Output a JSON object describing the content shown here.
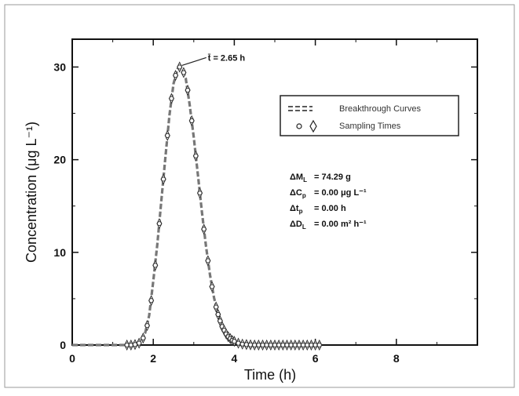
{
  "chart_data": {
    "type": "line",
    "title": "",
    "xlabel": "Time (h)",
    "ylabel": "Concentration (μg L⁻¹)",
    "xlim": [
      0,
      10
    ],
    "ylim": [
      0,
      33
    ],
    "x_ticks": [
      0,
      2,
      4,
      6,
      8
    ],
    "y_ticks": [
      0,
      10,
      20,
      30
    ],
    "grid": false,
    "legend_position": "top-right",
    "legend": [
      {
        "label": "Breakthrough Curves",
        "marker": "dashed-line"
      },
      {
        "label": "Sampling Times",
        "marker": "circle-diamond"
      }
    ],
    "series": [
      {
        "name": "Breakthrough Curves",
        "style": "dashed",
        "color": "#666666",
        "x": [
          0.0,
          0.5,
          1.0,
          1.3,
          1.5,
          1.6,
          1.7,
          1.8,
          1.9,
          2.0,
          2.1,
          2.2,
          2.3,
          2.4,
          2.5,
          2.6,
          2.65,
          2.7,
          2.8,
          2.9,
          3.0,
          3.1,
          3.2,
          3.3,
          3.4,
          3.5,
          3.6,
          3.7,
          3.8,
          3.9,
          4.0,
          4.2,
          4.5,
          5.0,
          5.5,
          6.0,
          6.2
        ],
        "y": [
          0.0,
          0.0,
          0.0,
          0.0,
          0.02,
          0.1,
          0.4,
          1.3,
          3.2,
          6.9,
          10.9,
          15.6,
          20.3,
          24.8,
          28.2,
          29.8,
          30.0,
          29.8,
          28.8,
          25.9,
          22.4,
          18.4,
          14.4,
          10.7,
          7.6,
          5.1,
          3.3,
          2.0,
          1.2,
          0.7,
          0.4,
          0.1,
          0.02,
          0.0,
          0.0,
          0.0,
          0.0
        ]
      },
      {
        "name": "Sampling Times",
        "style": "markers",
        "color": "#555555",
        "x": [
          1.35,
          1.45,
          1.55,
          1.65,
          1.75,
          1.85,
          1.95,
          2.05,
          2.15,
          2.25,
          2.35,
          2.45,
          2.55,
          2.65,
          2.75,
          2.85,
          2.95,
          3.05,
          3.15,
          3.25,
          3.35,
          3.45,
          3.55,
          3.6,
          3.65,
          3.7,
          3.75,
          3.8,
          3.85,
          3.9,
          3.95,
          4.0,
          4.1,
          4.2,
          4.3,
          4.4,
          4.5,
          4.6,
          4.7,
          4.8,
          4.9,
          5.0,
          5.1,
          5.2,
          5.3,
          5.4,
          5.5,
          5.6,
          5.7,
          5.8,
          5.9,
          6.0,
          6.1
        ],
        "y": [
          0.0,
          0.0,
          0.05,
          0.2,
          0.75,
          2.1,
          4.8,
          8.6,
          13.1,
          17.9,
          22.6,
          26.6,
          29.1,
          30.0,
          29.4,
          27.5,
          24.2,
          20.4,
          16.4,
          12.5,
          9.1,
          6.3,
          4.1,
          3.3,
          2.6,
          2.0,
          1.6,
          1.2,
          0.9,
          0.7,
          0.5,
          0.4,
          0.2,
          0.1,
          0.05,
          0.02,
          0.0,
          0.0,
          0.0,
          0.0,
          0.0,
          0.0,
          0.0,
          0.0,
          0.0,
          0.0,
          0.0,
          0.0,
          0.0,
          0.0,
          0.0,
          0.0,
          0.0
        ]
      }
    ],
    "annotations": [
      {
        "text": "t̄ = 2.65 h",
        "x": 2.65,
        "y": 30.0
      }
    ],
    "stats": [
      {
        "label": "ΔM",
        "subscript": "L",
        "value": "= 74.29 g"
      },
      {
        "label": "ΔC",
        "subscript": "p",
        "value": "= 0.00 μg L⁻¹"
      },
      {
        "label": "Δt",
        "subscript": "p",
        "value": "= 0.00 h"
      },
      {
        "label": "ΔD",
        "subscript": "L",
        "value": "= 0.00 m² h⁻¹"
      }
    ]
  }
}
